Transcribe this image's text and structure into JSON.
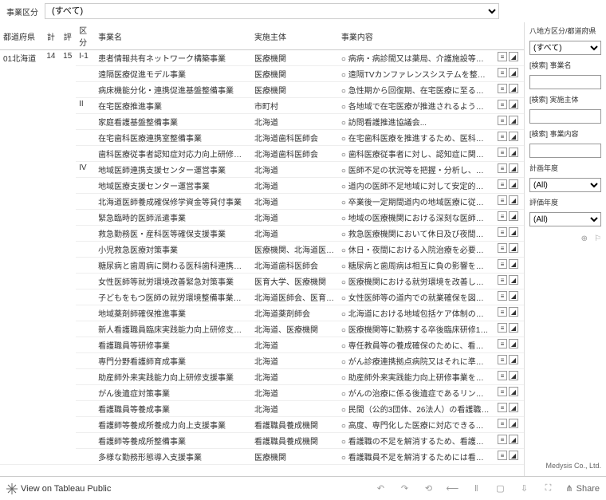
{
  "topFilter": {
    "label": "事業区分",
    "value": "(すべて)"
  },
  "sidebar": {
    "regionLabel": "八地方区分/都道府県",
    "regionValue": "(すべて)",
    "searchNameLabel": "[検索] 事業名",
    "searchBodyLabel": "[検索] 実施主体",
    "searchContentLabel": "[検索] 事業内容",
    "planYearLabel": "計画年度",
    "planYearValue": "(All)",
    "evalYearLabel": "評価年度",
    "evalYearValue": "(All)",
    "credit": "Medysis Co., Ltd."
  },
  "headers": {
    "pref": "都道府県",
    "kei": "計",
    "hyou": "評",
    "kubun": "区分",
    "name": "事業名",
    "body": "実施主体",
    "content": "事業内容"
  },
  "prefCell": "01北海道",
  "keiCell": "14",
  "hyouCell": "15",
  "rows": [
    {
      "kubun": "I-1",
      "name": "患者情報共有ネットワーク構築事業",
      "body": "医療機関",
      "content": "○ 病病・病診間又は薬局、介護施設等が医..."
    },
    {
      "kubun": "",
      "name": "遠隔医療促進モデル事業",
      "body": "医療機関",
      "content": "○ 遠隔TVカンファレンスシステムを整備するこ..."
    },
    {
      "kubun": "",
      "name": "病床機能分化・連携促進基盤整備事業",
      "body": "医療機関",
      "content": "○ 急性期から回復期、在宅医療に至るまで、..."
    },
    {
      "kubun": "II",
      "name": "在宅医療推進事業",
      "body": "市町村",
      "content": "○ 各地域で在宅医療が推進されるよう、市町..."
    },
    {
      "kubun": "",
      "name": "家庭看護基盤整備事業",
      "body": "北海道",
      "content": "○ 訪問看護推進協議会..."
    },
    {
      "kubun": "",
      "name": "在宅歯科医療連携室整備事業",
      "body": "北海道歯科医師会",
      "content": "○ 在宅歯科医療を推進するため、医科や介護..."
    },
    {
      "kubun": "",
      "name": "歯科医療従事者認知症対応力向上研修事業",
      "body": "北海道歯科医師会",
      "content": "○ 歯科医療従事者に対し、認知症に関する要介..."
    },
    {
      "kubun": "IV",
      "name": "地域医師連携支援センター運営事業",
      "body": "北海道",
      "content": "○ 医師不足の状況等を把握・分析し、医師の..."
    },
    {
      "kubun": "",
      "name": "地域医療支援センター運営事業",
      "body": "北海道",
      "content": "○ 道内の医師不足地域に対して安定的に医..."
    },
    {
      "kubun": "",
      "name": "北海道医師養成確保修学資金等貸付事業",
      "body": "北海道",
      "content": "○ 卒業後一定期間道内の地域医療に従事す..."
    },
    {
      "kubun": "",
      "name": "緊急臨時的医師派遣事業",
      "body": "北海道",
      "content": "○ 地域の医療機関における深刻な医師不足..."
    },
    {
      "kubun": "",
      "name": "救急勤務医・産科医等確保支援事業",
      "body": "北海道",
      "content": "○ 救急医療機関において休日及び夜間の救..."
    },
    {
      "kubun": "",
      "name": "小児救急医療対策事業",
      "body": "医療機関、北海道医師会",
      "content": "○ 休日・夜間における入院治療を必要とする..."
    },
    {
      "kubun": "",
      "name": "糖尿病と歯周病に関わる医科歯科連携推進事業",
      "body": "北海道歯科医師会",
      "content": "○ 糖尿病と歯周病は相互に負の影響を与える..."
    },
    {
      "kubun": "",
      "name": "女性医師等就労環境改善緊急対策事業",
      "body": "医育大学、医療機関",
      "content": "○ 医療機関における就労環境を改善し、子供..."
    },
    {
      "kubun": "",
      "name": "子どもをもつ医師の就労環境整備事業、短時間正...",
      "body": "北海道医師会、医育大学、医療...",
      "content": "○ 女性医師等の道内での就業確保を図るため..."
    },
    {
      "kubun": "",
      "name": "地域薬剤師確保推進事業",
      "body": "北海道薬剤師会",
      "content": "○ 北海道における地域包括ケア体制の構築を..."
    },
    {
      "kubun": "",
      "name": "新人看護職員臨床実践能力向上研修支援事業",
      "body": "北海道、医療機関",
      "content": "○ 医療機関等に勤務する卒後臨床研修1年..."
    },
    {
      "kubun": "",
      "name": "看護職員等研修事業",
      "body": "北海道",
      "content": "○ 専任教員等の養成確保のために、看護教..."
    },
    {
      "kubun": "",
      "name": "専門分野看護師育成事業",
      "body": "北海道",
      "content": "○ がん診療連携拠点病院又はそれに準ずる病..."
    },
    {
      "kubun": "",
      "name": "助産師外来実践能力向上研修支援事業",
      "body": "北海道",
      "content": "○ 助産師外来実践能力向上研修事業を円滑..."
    },
    {
      "kubun": "",
      "name": "がん後遺症対策事業",
      "body": "北海道",
      "content": "○ がんの治療に係る後遺症であるリンパ浮腫の..."
    },
    {
      "kubun": "",
      "name": "看護職員等養成事業",
      "body": "北海道",
      "content": "○ 民間（公的3団体、26法人）の看護職員..."
    },
    {
      "kubun": "",
      "name": "看護師等養成所養成力向上支援事業",
      "body": "看護職員養成機関",
      "content": "○ 高度、専門化した医療に対応できる看護職..."
    },
    {
      "kubun": "",
      "name": "看護師等養成所整備事業",
      "body": "看護職員養成機関",
      "content": "○ 看護職の不足を解消するため、看護職員..."
    },
    {
      "kubun": "",
      "name": "多様な勤務形態導入支援事業",
      "body": "医療機関",
      "content": "○ 看護職員不足を解消するためには看護職員..."
    }
  ],
  "bottomBar": {
    "viewLabel": "View on Tableau Public",
    "shareLabel": "Share"
  }
}
